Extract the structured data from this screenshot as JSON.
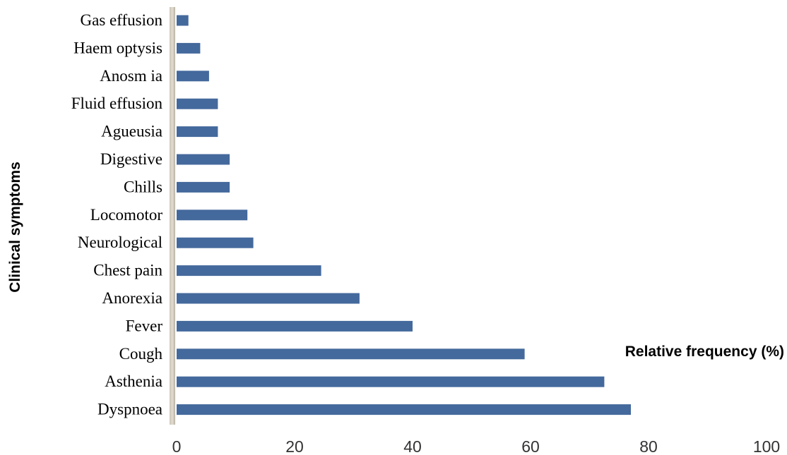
{
  "chart_data": {
    "type": "bar",
    "orientation": "horizontal",
    "ylabel": "Clinical symptoms",
    "xlabel": "Relative frequency (%)",
    "xlim": [
      0,
      100
    ],
    "xticks": [
      0,
      20,
      40,
      60,
      80,
      100
    ],
    "categories": [
      "Gas effusion",
      "Haem optysis",
      "Anosm ia",
      "Fluid effusion",
      "Agueusia",
      "Digestive",
      "Chills",
      "Locomotor",
      "Neurological",
      "Chest pain",
      "Anorexia",
      "Fever",
      "Cough",
      "Asthenia",
      "Dyspnoea"
    ],
    "values": [
      2,
      4,
      5.5,
      7,
      7,
      9,
      9,
      12,
      13,
      24.5,
      31,
      40,
      59,
      72.5,
      77
    ],
    "bar_color": "#44699c",
    "grid": false,
    "legend": "none"
  }
}
